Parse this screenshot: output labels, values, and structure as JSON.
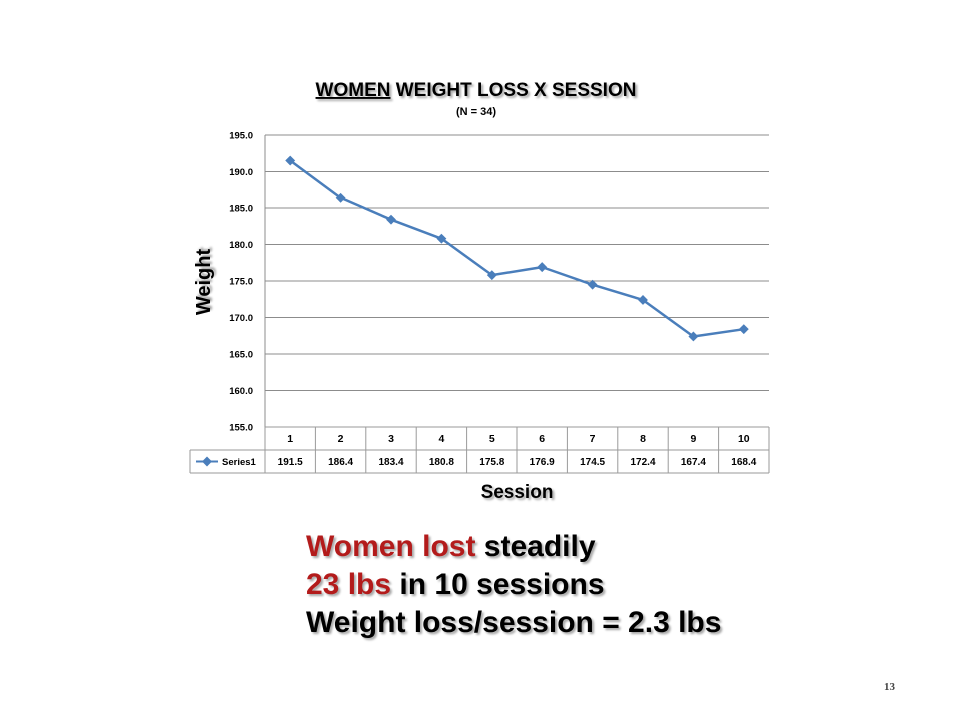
{
  "chart_data": {
    "type": "line",
    "title_underlined": "WOMEN",
    "title_rest": "WEIGHT LOSS X SESSION",
    "subtitle": "(N = 34)",
    "xlabel": "Session",
    "ylabel": "Weight",
    "ylim": [
      155.0,
      195.0
    ],
    "y_ticks": [
      "195.0",
      "190.0",
      "185.0",
      "180.0",
      "175.0",
      "170.0",
      "165.0",
      "160.0",
      "155.0"
    ],
    "y_tick_values": [
      195,
      190,
      185,
      180,
      175,
      170,
      165,
      160,
      155
    ],
    "categories": [
      "1",
      "2",
      "3",
      "4",
      "5",
      "6",
      "7",
      "8",
      "9",
      "10"
    ],
    "series": [
      {
        "name": "Series1",
        "values": [
          191.5,
          186.4,
          183.4,
          180.8,
          175.8,
          176.9,
          174.5,
          172.4,
          167.4,
          168.4
        ],
        "value_labels": [
          "191.5",
          "186.4",
          "183.4",
          "180.8",
          "175.8",
          "176.9",
          "174.5",
          "172.4",
          "167.4",
          "168.4"
        ],
        "color": "#4a7ebb"
      }
    ],
    "grid": true,
    "data_table": true
  },
  "caption": {
    "line1_red": "Women lost",
    "line1_rest": " steadily",
    "line2_red": "23 lbs",
    "line2_rest": " in 10 sessions",
    "line3": "Weight loss/session = 2.3 lbs",
    "accent_color": "#b31b1b"
  },
  "page_number": "13"
}
